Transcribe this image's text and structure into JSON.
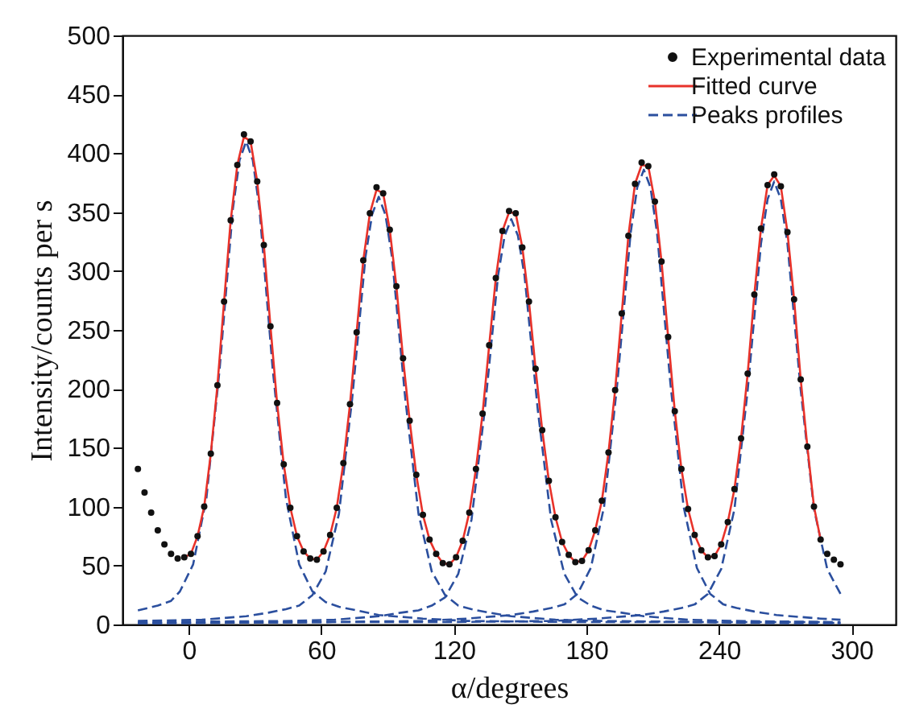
{
  "chart_data": {
    "type": "scatter",
    "xlabel": "α/degrees",
    "ylabel": "Intensity/counts per s",
    "xlim": [
      -30,
      320
    ],
    "ylim": [
      0,
      500
    ],
    "xticks": [
      0,
      60,
      120,
      180,
      240,
      300
    ],
    "yticks": [
      0,
      50,
      100,
      150,
      200,
      250,
      300,
      350,
      400,
      450,
      500
    ],
    "legend": "top right",
    "series": [
      {
        "name": "Experimental data",
        "type": "scatter",
        "marker": "circle",
        "color": "#111111",
        "x": [
          -23,
          -20,
          -17,
          -14,
          -11,
          -8,
          -5,
          -2,
          1,
          4,
          7,
          10,
          13,
          16,
          19,
          22,
          25,
          28,
          31,
          34,
          37,
          40,
          43,
          46,
          49,
          52,
          55,
          58,
          61,
          64,
          67,
          70,
          73,
          76,
          79,
          82,
          85,
          88,
          91,
          94,
          97,
          100,
          103,
          106,
          109,
          112,
          115,
          118,
          121,
          124,
          127,
          130,
          133,
          136,
          139,
          142,
          145,
          148,
          151,
          154,
          157,
          160,
          163,
          166,
          169,
          172,
          175,
          178,
          181,
          184,
          187,
          190,
          193,
          196,
          199,
          202,
          205,
          208,
          211,
          214,
          217,
          220,
          223,
          226,
          229,
          232,
          235,
          238,
          241,
          244,
          247,
          250,
          253,
          256,
          259,
          262,
          265,
          268,
          271,
          274,
          277,
          280,
          283,
          286,
          289,
          292,
          295
        ],
        "values": [
          132,
          112,
          95,
          80,
          68,
          60,
          56,
          57,
          60,
          75,
          100,
          145,
          203,
          274,
          343,
          390,
          416,
          410,
          376,
          322,
          253,
          188,
          136,
          99,
          75,
          62,
          56,
          55,
          62,
          76,
          99,
          137,
          187,
          248,
          309,
          349,
          371,
          366,
          335,
          287,
          226,
          173,
          127,
          93,
          72,
          60,
          52,
          51,
          57,
          71,
          95,
          132,
          179,
          237,
          294,
          334,
          351,
          349,
          320,
          274,
          217,
          165,
          122,
          91,
          70,
          59,
          53,
          54,
          63,
          80,
          105,
          146,
          199,
          264,
          330,
          374,
          392,
          389,
          359,
          308,
          244,
          181,
          132,
          98,
          76,
          63,
          57,
          58,
          68,
          87,
          115,
          158,
          213,
          280,
          336,
          373,
          382,
          372,
          333,
          276,
          208,
          151,
          100,
          72,
          60,
          55,
          51
        ]
      },
      {
        "name": "Fitted curve",
        "type": "line",
        "line_style": "solid",
        "color": "#e8322a",
        "x": [
          -2,
          1,
          4,
          7,
          10,
          13,
          16,
          19,
          22,
          25,
          28,
          31,
          34,
          37,
          40,
          43,
          46,
          49,
          52,
          55,
          58,
          61,
          64,
          67,
          70,
          73,
          76,
          79,
          82,
          85,
          88,
          91,
          94,
          97,
          100,
          103,
          106,
          109,
          112,
          115,
          118,
          121,
          124,
          127,
          130,
          133,
          136,
          139,
          142,
          145,
          148,
          151,
          154,
          157,
          160,
          163,
          166,
          169,
          172,
          175,
          178,
          181,
          184,
          187,
          190,
          193,
          196,
          199,
          202,
          205,
          208,
          211,
          214,
          217,
          220,
          223,
          226,
          229,
          232,
          235,
          238,
          241,
          244,
          247,
          250,
          253,
          256,
          259,
          262,
          265,
          268,
          271,
          274,
          277,
          280,
          283,
          286
        ],
        "values": [
          57,
          60,
          75,
          100,
          145,
          203,
          274,
          343,
          390,
          414,
          410,
          376,
          322,
          253,
          188,
          136,
          99,
          75,
          62,
          56,
          55,
          62,
          76,
          99,
          137,
          187,
          248,
          309,
          349,
          369,
          366,
          335,
          287,
          226,
          173,
          127,
          93,
          72,
          60,
          52,
          51,
          57,
          71,
          95,
          132,
          179,
          237,
          294,
          334,
          350,
          349,
          320,
          274,
          217,
          165,
          122,
          91,
          70,
          59,
          53,
          54,
          63,
          80,
          105,
          146,
          199,
          264,
          330,
          374,
          390,
          389,
          359,
          308,
          244,
          181,
          132,
          98,
          76,
          63,
          57,
          58,
          68,
          87,
          115,
          158,
          213,
          280,
          336,
          373,
          381,
          372,
          333,
          276,
          208,
          151,
          100,
          72
        ]
      },
      {
        "name": "Peaks profiles",
        "type": "line",
        "line_style": "dashed",
        "color": "#2b4f9e",
        "x": [
          -23,
          -14,
          -8,
          -4,
          2,
          8,
          14,
          20,
          23,
          26,
          29,
          32,
          38,
          44,
          50,
          56,
          62,
          68,
          76,
          86,
          106,
          126,
          176,
          226,
          276,
          295
        ],
        "values": [
          12,
          16,
          20,
          28,
          51,
          107,
          217,
          353,
          394,
          410,
          394,
          353,
          217,
          107,
          51,
          28,
          19,
          15,
          12,
          8,
          5,
          3,
          2,
          2,
          1,
          1
        ]
      },
      {
        "type": "line",
        "line_style": "dashed",
        "color": "#2b4f9e",
        "x": [
          -23,
          6,
          26,
          36,
          44,
          50,
          56,
          62,
          68,
          74,
          80,
          83,
          86,
          89,
          92,
          98,
          104,
          110,
          116,
          122,
          128,
          136,
          146,
          166,
          186,
          236,
          286,
          295
        ],
        "values": [
          3,
          4,
          7,
          10,
          13,
          16,
          25,
          45,
          94,
          192,
          312,
          348,
          363,
          348,
          312,
          192,
          94,
          45,
          25,
          16,
          13,
          10,
          7,
          4,
          3,
          2,
          2,
          1
        ]
      },
      {
        "type": "line",
        "line_style": "dashed",
        "color": "#2b4f9e",
        "x": [
          -23,
          46,
          66,
          86,
          96,
          104,
          110,
          116,
          122,
          128,
          134,
          140,
          143,
          146,
          149,
          152,
          158,
          164,
          170,
          176,
          182,
          188,
          196,
          206,
          226,
          246,
          295
        ],
        "values": [
          2,
          3,
          4,
          7,
          10,
          12,
          16,
          23,
          43,
          89,
          182,
          296,
          330,
          344,
          330,
          296,
          182,
          89,
          43,
          23,
          16,
          12,
          10,
          7,
          4,
          3,
          2
        ]
      },
      {
        "type": "line",
        "line_style": "dashed",
        "color": "#2b4f9e",
        "x": [
          -23,
          56,
          106,
          126,
          146,
          156,
          164,
          170,
          176,
          182,
          188,
          194,
          200,
          203,
          206,
          209,
          212,
          218,
          224,
          230,
          236,
          242,
          248,
          256,
          266,
          286,
          295
        ],
        "values": [
          1,
          2,
          3,
          5,
          8,
          11,
          14,
          17,
          26,
          48,
          100,
          205,
          332,
          371,
          386,
          371,
          332,
          205,
          100,
          48,
          26,
          17,
          14,
          11,
          8,
          5,
          4
        ]
      },
      {
        "type": "line",
        "line_style": "dashed",
        "color": "#2b4f9e",
        "x": [
          -23,
          65,
          115,
          165,
          185,
          205,
          215,
          223,
          229,
          235,
          241,
          247,
          253,
          259,
          262,
          265,
          268,
          271,
          277,
          283,
          289,
          295
        ],
        "values": [
          1,
          2,
          2,
          3,
          5,
          8,
          11,
          14,
          17,
          26,
          47,
          98,
          199,
          323,
          361,
          376,
          361,
          323,
          199,
          98,
          47,
          26
        ]
      }
    ]
  }
}
